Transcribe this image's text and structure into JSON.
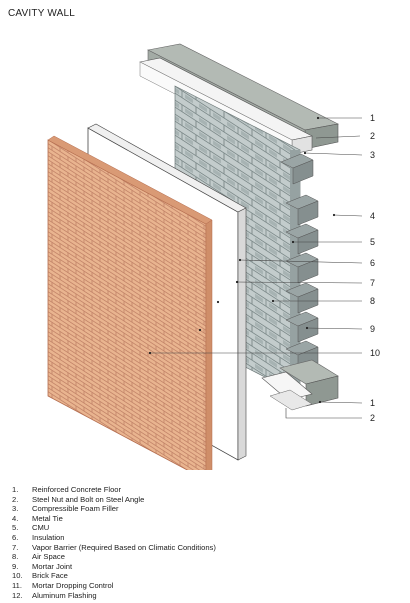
{
  "title": "CAVITY WALL",
  "legend": [
    {
      "num": "1.",
      "text": "Reinforced Concrete Floor"
    },
    {
      "num": "2.",
      "text": "Steel Nut and Bolt on Steel Angle"
    },
    {
      "num": "3.",
      "text": "Compressible Foam Filler"
    },
    {
      "num": "4.",
      "text": "Metal Tie"
    },
    {
      "num": "5.",
      "text": "CMU"
    },
    {
      "num": "6.",
      "text": "Insulation"
    },
    {
      "num": "7.",
      "text": "Vapor Barrier (Required Based on Climatic Conditions)"
    },
    {
      "num": "8.",
      "text": "Air Space"
    },
    {
      "num": "9.",
      "text": "Mortar Joint"
    },
    {
      "num": "10.",
      "text": "Brick Face"
    },
    {
      "num": "11.",
      "text": "Mortar Dropping Control"
    },
    {
      "num": "12.",
      "text": "Aluminum Flashing"
    }
  ],
  "callouts": [
    "1",
    "2",
    "3",
    "4",
    "5",
    "6",
    "7",
    "8",
    "9",
    "10",
    "1",
    "2"
  ],
  "colors": {
    "brick": "#e9b48f",
    "mortar": "#c4866a",
    "concrete": "#a9b0aa",
    "cmu": "#bcc6c6",
    "insulation": "#ffffff"
  }
}
